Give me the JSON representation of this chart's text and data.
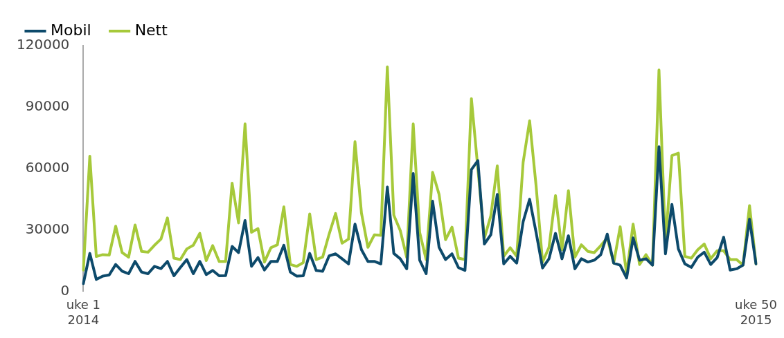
{
  "chart_data": {
    "type": "line",
    "categories": [
      "uke 1\n2014",
      null,
      null,
      null,
      null,
      null,
      null,
      null,
      null,
      null,
      null,
      null,
      null,
      null,
      null,
      null,
      null,
      null,
      null,
      null,
      null,
      null,
      null,
      null,
      null,
      null,
      null,
      null,
      null,
      null,
      null,
      null,
      null,
      null,
      null,
      null,
      null,
      null,
      null,
      null,
      null,
      null,
      null,
      null,
      null,
      null,
      null,
      null,
      null,
      null,
      null,
      null,
      null,
      null,
      null,
      null,
      null,
      null,
      null,
      null,
      null,
      null,
      null,
      null,
      null,
      null,
      null,
      null,
      null,
      null,
      null,
      null,
      null,
      null,
      null,
      null,
      null,
      null,
      null,
      null,
      null,
      null,
      null,
      null,
      null,
      null,
      null,
      null,
      null,
      null,
      null,
      null,
      null,
      null,
      null,
      null,
      null,
      null,
      null,
      null,
      null,
      null,
      null,
      null,
      "uke 50\n2015"
    ],
    "series": [
      {
        "name": "Mobil",
        "color": "#0d4a6b",
        "values": [
          3900,
          18600,
          5900,
          7500,
          8100,
          13200,
          9900,
          8700,
          14700,
          9500,
          8700,
          12300,
          11200,
          14700,
          7700,
          11700,
          15600,
          8700,
          14700,
          8300,
          10300,
          7700,
          7800,
          22000,
          19000,
          34700,
          12300,
          16600,
          10500,
          14700,
          14700,
          22600,
          9500,
          7500,
          7700,
          18600,
          10300,
          9900,
          17400,
          18400,
          16000,
          13500,
          32900,
          20400,
          14700,
          14700,
          13500,
          51000,
          18600,
          16000,
          11100,
          57600,
          15300,
          8700,
          44100,
          21600,
          15600,
          18400,
          11700,
          10300,
          59500,
          63900,
          23200,
          27700,
          47400,
          13500,
          17200,
          13900,
          34100,
          45000,
          28900,
          11500,
          16000,
          28400,
          16000,
          27200,
          11100,
          16000,
          14400,
          15300,
          18000,
          28000,
          13900,
          12900,
          6600,
          26200,
          15300,
          16000,
          12900,
          70700,
          18400,
          42500,
          20800,
          13500,
          11800,
          16800,
          19200,
          13200,
          16600,
          26500,
          10500,
          11100,
          12900,
          35300,
          13500
        ]
      },
      {
        "name": "Nett",
        "color": "#a6c93a",
        "values": [
          10500,
          66000,
          17100,
          18000,
          17800,
          31900,
          19000,
          16800,
          32500,
          19600,
          19200,
          22600,
          25600,
          35900,
          16300,
          15600,
          20800,
          22600,
          28400,
          15100,
          22400,
          14700,
          14700,
          52900,
          33500,
          81800,
          28900,
          30700,
          14400,
          21400,
          22800,
          41300,
          13200,
          12300,
          14100,
          37900,
          15600,
          16800,
          28000,
          38100,
          23600,
          25600,
          73100,
          38300,
          21600,
          27700,
          27400,
          109600,
          37300,
          29800,
          16600,
          81800,
          28900,
          15600,
          58200,
          47400,
          25300,
          31400,
          16300,
          15600,
          94100,
          60000,
          26000,
          36900,
          61300,
          17200,
          21400,
          17200,
          63100,
          83300,
          51600,
          14400,
          21600,
          46800,
          20400,
          49200,
          16800,
          22800,
          19600,
          19000,
          22400,
          26200,
          13900,
          31600,
          8700,
          32900,
          13200,
          18000,
          12900,
          108100,
          23800,
          66300,
          67500,
          17200,
          16300,
          20400,
          23200,
          16000,
          19900,
          19900,
          15600,
          15600,
          12900,
          41900,
          13500
        ]
      }
    ],
    "ylim": [
      0,
      120000
    ],
    "yticks": [
      0,
      30000,
      60000,
      90000,
      120000
    ],
    "legend": "top left",
    "marker": "none",
    "line_style": "solid"
  }
}
